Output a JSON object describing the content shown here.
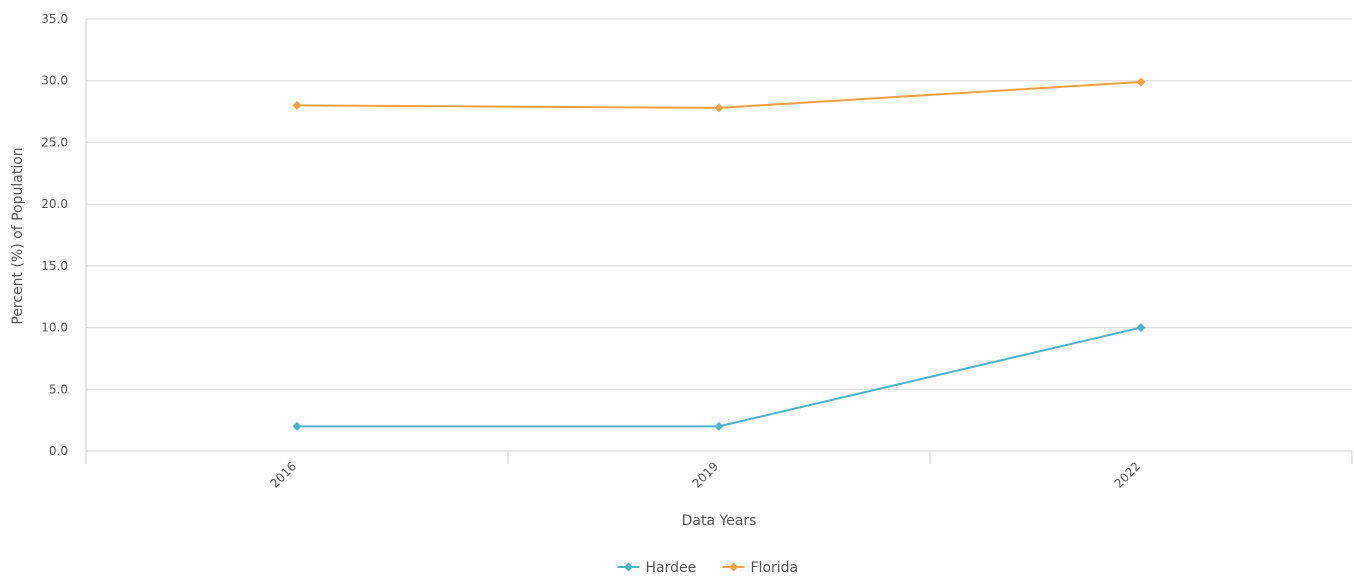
{
  "chart_data": {
    "type": "line",
    "title": "",
    "xlabel": "Data Years",
    "ylabel": "Percent (%) of Population",
    "categories": [
      "2016",
      "2019",
      "2022"
    ],
    "yticks": [
      "0.0",
      "5.0",
      "10.0",
      "15.0",
      "20.0",
      "25.0",
      "30.0",
      "35.0"
    ],
    "ylim": [
      0,
      35
    ],
    "grid": true,
    "legend_position": "bottom-center",
    "series": [
      {
        "name": "Hardee",
        "color": "#4db3c8",
        "values": [
          2.0,
          2.0,
          10.0
        ]
      },
      {
        "name": "Florida",
        "color": "#f5a142",
        "values": [
          28.0,
          27.8,
          29.9
        ]
      }
    ]
  }
}
